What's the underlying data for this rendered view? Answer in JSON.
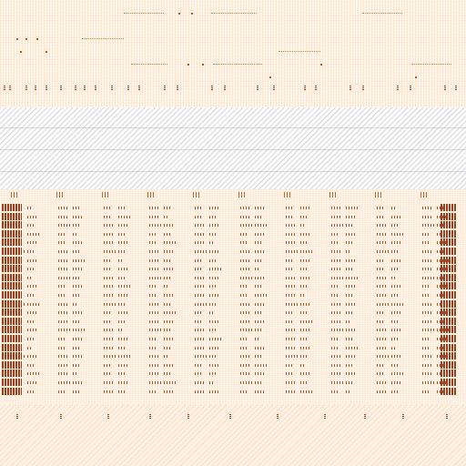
{
  "screen": {
    "description_text": ""
  },
  "colors": {
    "background": "#ffffff",
    "header_fill": "#fff3e8",
    "grid_fill": "#ffe8cf",
    "mark": "#a8552a",
    "dark_mark": "#9c3f1e"
  },
  "grid": {
    "columns": 10,
    "rows": 22
  }
}
